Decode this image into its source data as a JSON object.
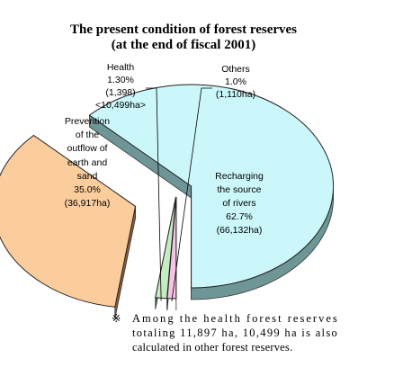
{
  "chart_data": {
    "type": "pie",
    "title": "The present condition of forest reserves",
    "subtitle": "(at the end of fiscal 2001)",
    "slices": [
      {
        "key": "rivers",
        "label_lines": [
          "Recharging",
          "the source",
          "of rivers",
          "62.7%",
          "(66,132ha)"
        ],
        "value": 62.7,
        "color": "#cbf7fb",
        "side": "#6f9696"
      },
      {
        "key": "erosion",
        "label_lines": [
          "Prevention",
          "of the",
          "outflow of",
          "earth and",
          "sand",
          "35.0%",
          "(36,917ha)"
        ],
        "value": 35.0,
        "color": "#fbcd9d",
        "side": "#8c6040"
      },
      {
        "key": "health",
        "label_lines": [
          "Health",
          "1.30%",
          "(1,398)",
          "<10,499ha>"
        ],
        "value": 1.3,
        "color": "#c4ecc0",
        "side": "#4f6e4c"
      },
      {
        "key": "others",
        "label_lines": [
          "Others",
          "1.0%",
          "(1,110ha)"
        ],
        "value": 1.0,
        "color": "#f6c4e6",
        "side": "#8c5a7a"
      }
    ],
    "note": {
      "mark": "※",
      "lines": [
        "Among the health forest reserves",
        "totaling 11,897 ha, 10,499 ha is also",
        "calculated in other forest reserves."
      ]
    }
  }
}
